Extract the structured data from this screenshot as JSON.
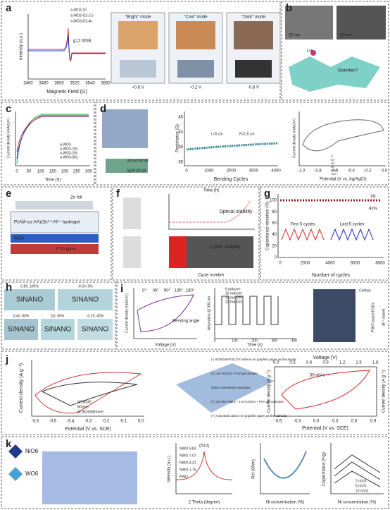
{
  "a": {
    "letter": "a",
    "ylabel": "Intensity (a.u.)",
    "xlabel": "Magnetic Field (G)",
    "xticks": [
      "3460",
      "3480",
      "3500",
      "3520",
      "3540",
      "3560"
    ],
    "legend": [
      "a-WO3-10",
      "a-WO3-O2-2.5",
      "a-WO3-O2-Ar"
    ],
    "annotation": "g=2.0038",
    "modes": [
      "\"Bright\" mode",
      "\"Cool\" mode",
      "\"Dark\" mode"
    ],
    "voltages": [
      "+0.8 V",
      "-0.2 V",
      "-0.8 V"
    ]
  },
  "b": {
    "letter": "b",
    "scales": [
      "20 nm",
      "20 nm"
    ],
    "ion": "Li+",
    "question": "Distortion?"
  },
  "c": {
    "letter": "c",
    "ylabel": "Current density (mA/cm²)",
    "xlabel": "Time (S)",
    "xticks": [
      "0",
      "50",
      "100",
      "150",
      "200",
      "250",
      "300"
    ],
    "legend": [
      "a-WO3",
      "a-WO3-10s",
      "a-WO3-20s",
      "a-WO3-30s"
    ]
  },
  "d": {
    "letter": "d",
    "layers": [
      "rGO/W18O49",
      "Ag/W18O49"
    ],
    "ylabel": "Resistance (Ω)",
    "xlabel": "Bending Cycles",
    "yticks": [
      "30",
      "35",
      "40",
      "45"
    ],
    "xticks": [
      "0",
      "1000",
      "2000",
      "3000",
      "4000"
    ],
    "dims": [
      "L=5 cm",
      "R=1.5 cm"
    ],
    "cv_ylabel": "Current density (mA/cm²)",
    "cv_xlabel": "Potential (V vs. Ag/AgCl)",
    "cv_xticks": [
      "-1.0",
      "-0.8",
      "-0.6",
      "-0.4",
      "-0.2",
      "0.0"
    ],
    "cv_legend": [
      "0°",
      "30°",
      "60°",
      "90°",
      "120°",
      "150°"
    ]
  },
  "e": {
    "letter": "e",
    "labels": [
      "Zn foil",
      "P(AM-co-AA)/Zn²⁺-Al³⁺ hydrogel",
      "WO3",
      "FTO glass"
    ]
  },
  "f": {
    "letter": "f",
    "top_axis": "Time (h)",
    "bottom_axis": "Cycle number",
    "optical": "Optical stability",
    "cyclic": "Cyclic stability"
  },
  "g": {
    "letter": "g",
    "ylabel": "Capacitance retention (%)",
    "xlabel": "Number of cycles",
    "yticks": [
      "0",
      "20",
      "40",
      "60",
      "80",
      "100"
    ],
    "xticks": [
      "0",
      "2000",
      "4000",
      "6000",
      "8000"
    ],
    "retention": "92%",
    "tag": "(a)",
    "insets": [
      "First 5 cycles",
      "Last 5 cycles"
    ]
  },
  "h": {
    "letter": "h",
    "brand": "SINANO",
    "captions": [
      "0.8V, 100%",
      "-0.5V, 0%",
      "0.4V, 80%",
      "0V, 50%",
      "-0.2V, 40%"
    ]
  },
  "i": {
    "letter": "i",
    "ylabel": "Current density (mA/cm²)",
    "xlabel": "Voltage (V)",
    "legend": [
      "0°",
      "45°",
      "90°",
      "135°",
      "180°"
    ],
    "bend": "Bending angle",
    "abs_ylabel": "Absorption @ 550 nm",
    "abs_xlabel": "Time (s)",
    "abs_xticks": [
      "0",
      "100",
      "200",
      "300",
      "400"
    ],
    "abs_legend": [
      "6 mA/cm²",
      "10 mA/cm²",
      "18 mA/cm²",
      "22 mA/cm²"
    ],
    "device": [
      "Clothes",
      "P3HT-based ECDs",
      "Al³⁺-based"
    ]
  },
  "j": {
    "letter": "j",
    "ylabel": "Current density (A g⁻¹)",
    "xlabel": "Potential (V vs. SCE)",
    "xticks": [
      "-0.6",
      "-0.5",
      "-0.4",
      "-0.3",
      "-0.2",
      "-0.1",
      "0.0"
    ],
    "legend": [
      "W18O49",
      "MXene",
      "W18O49/MXene"
    ],
    "device": [
      "(-) W18O49/Ti3C2Tx MXene on graphite paper as the anode",
      "(-) 1 M H2SO4 + PVA gel anolyte",
      "Nafion membrane separator",
      "(+) 40 mM FeBr2 + 1 M H2SO4 + PVA gel catholyte",
      "(+) Activated carbon on graphite paper as the cathode"
    ],
    "top_label": "Voltage (V)",
    "top_ticks": [
      "0.0",
      "0.3",
      "0.6",
      "0.9",
      "1.2",
      "1.5",
      "1.8"
    ],
    "bottom_ticks": [
      "-0.6",
      "-0.3",
      "0.0",
      "0.3",
      "0.6",
      "0.9"
    ],
    "scan": "50 mV s⁻¹",
    "left_label": "Current density (A g⁻¹)",
    "right_label": "Current density (A g⁻¹)",
    "bottom_label": "Potential (V vs. SCE)"
  },
  "k": {
    "letter": "k",
    "polyhedra": [
      "NiO6",
      "WO6"
    ],
    "xrd_legend": [
      "NWO-9.83",
      "NWO-7.07",
      "NWO-4.21",
      "NWO-1.75",
      "PWO"
    ],
    "peak": "(010)",
    "xrd_xlabel": "2 Theta (degree)",
    "xrd_ylabel": "Intensity (a.u.)",
    "rct_ylabel": "Rct (Ohm)",
    "ni_xlabel": "Ni concentration (%)",
    "cap_ylabel": "Capacitance (F/g)",
    "rates": [
      "2 mV/s",
      "5 mV/s",
      "10 mV/s"
    ]
  }
}
